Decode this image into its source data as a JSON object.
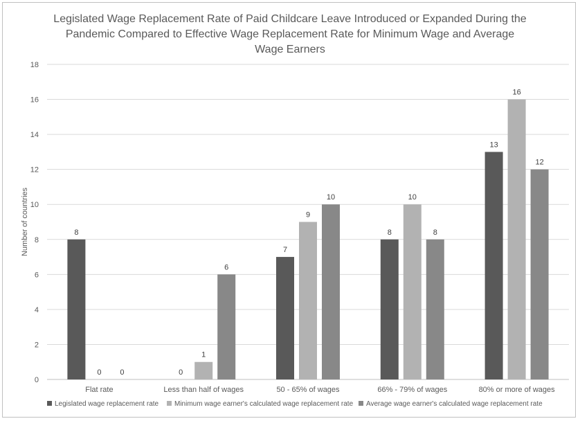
{
  "chart_data": {
    "type": "bar",
    "title_lines": [
      "Legislated Wage Replacement Rate of Paid Childcare Leave Introduced or Expanded During the",
      "Pandemic Compared to Effective Wage Replacement Rate for Minimum Wage and Average",
      "Wage Earners"
    ],
    "ylabel": "Number of countries",
    "ylim": [
      0,
      18
    ],
    "yticks": [
      "0",
      "2",
      "4",
      "6",
      "8",
      "10",
      "12",
      "14",
      "16",
      "18"
    ],
    "grid": true,
    "legend_position": "bottom",
    "categories": [
      "Flat rate",
      "Less than half of wages",
      "50 - 65% of wages",
      "66% - 79% of wages",
      "80% or more of wages"
    ],
    "series": [
      {
        "name": "Legislated wage replacement rate",
        "values": [
          8,
          0,
          7,
          8,
          13
        ],
        "color": "#595959"
      },
      {
        "name": "Minimum wage earner's calculated wage replacement rate",
        "values": [
          0,
          1,
          9,
          10,
          16
        ],
        "color": "#b2b2b2"
      },
      {
        "name": "Average wage earner's calculated wage replacement rate",
        "values": [
          0,
          6,
          10,
          8,
          12
        ],
        "color": "#888888"
      }
    ]
  }
}
